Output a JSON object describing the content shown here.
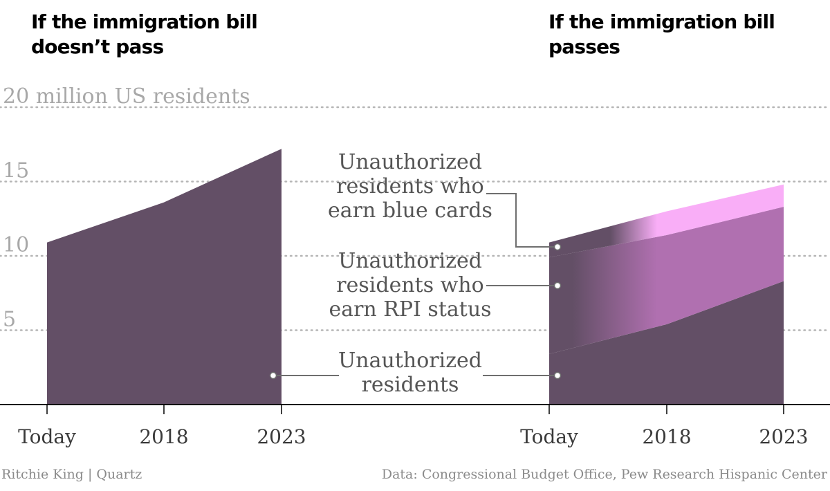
{
  "panels": {
    "left_title": "If the immigration bill doesn’t pass",
    "right_title": "If the immigration bill passes"
  },
  "labels": {
    "blue_cards": [
      "Unauthorized",
      "residents who",
      "earn blue cards"
    ],
    "rpi": [
      "Unauthorized",
      "residents who",
      "earn RPI status"
    ],
    "unauthorized": [
      "Unauthorized",
      "residents"
    ]
  },
  "footer": {
    "credit": "Ritchie King | Quartz",
    "source": "Data: Congressional Budget Office, Pew Research Hispanic Center"
  },
  "colors": {
    "unauthorized": "#634f66",
    "rpi": "#b070b0",
    "blue_cards": "#f9aef7",
    "grid": "#b5b5b5",
    "tick_label": "#a8a8a8",
    "axis_label": "#3a3a3a",
    "annotation": "#555555"
  },
  "chart_data": [
    {
      "type": "area",
      "title": "If the immigration bill doesn’t pass",
      "x": [
        "Today",
        "2018",
        "2023"
      ],
      "y_ticks": [
        {
          "value": 5,
          "label": "5"
        },
        {
          "value": 10,
          "label": "10"
        },
        {
          "value": 15,
          "label": "15"
        },
        {
          "value": 20,
          "label": "20 million US residents"
        }
      ],
      "ylim": [
        0,
        20
      ],
      "grid": true,
      "series": [
        {
          "name": "Unauthorized residents",
          "values": [
            10.9,
            13.6,
            17.2
          ]
        }
      ]
    },
    {
      "type": "area",
      "stacked": true,
      "title": "If the immigration bill passes",
      "x": [
        "Today",
        "2018",
        "2023"
      ],
      "ylim": [
        0,
        20
      ],
      "grid": true,
      "series": [
        {
          "name": "Unauthorized residents",
          "values": [
            3.4,
            5.4,
            8.3
          ]
        },
        {
          "name": "Unauthorized residents who earn RPI status",
          "values": [
            6.5,
            6.0,
            5.0
          ]
        },
        {
          "name": "Unauthorized residents who earn blue cards",
          "values": [
            1.0,
            1.6,
            1.5
          ]
        }
      ]
    }
  ]
}
